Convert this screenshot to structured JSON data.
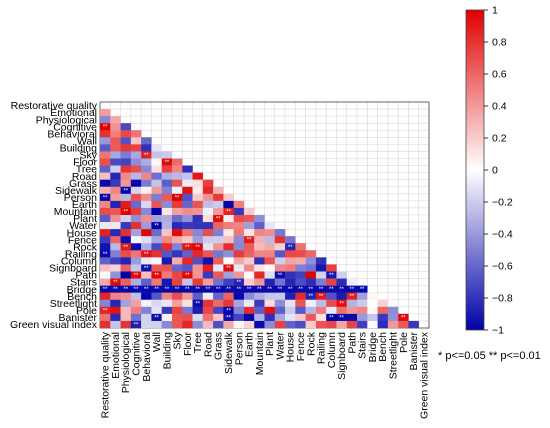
{
  "chart_data": {
    "type": "heatmap",
    "variables": [
      "Restorative quality",
      "Emotional",
      "Physiological",
      "Cognitive",
      "Behavioral",
      "Wall",
      "Building",
      "Sky",
      "Floor",
      "Tree",
      "Road",
      "Grass",
      "Sidewalk",
      "Person",
      "Earth",
      "Mountain",
      "Plant",
      "Water",
      "House",
      "Fence",
      "Rock",
      "Railing",
      "Column",
      "Signboard",
      "Path",
      "Stairs",
      "Bridge",
      "Bench",
      "Streetlight",
      "Pole",
      "Banister",
      "Green visual index"
    ],
    "colorbar": {
      "min": -1,
      "max": 1,
      "ticks": [
        "1",
        "0.8",
        "0.6",
        "0.4",
        "0.2",
        "0",
        "−0.2",
        "−0.4",
        "−0.6",
        "−0.8",
        "−1"
      ],
      "colors": {
        "negative": "#0000a8",
        "zero": "#ffffff",
        "positive": "#e00000"
      }
    },
    "grid": true,
    "strong_negative_row": "Bridge",
    "significance_note": "* p<=0.05   ** p<=0.01"
  }
}
